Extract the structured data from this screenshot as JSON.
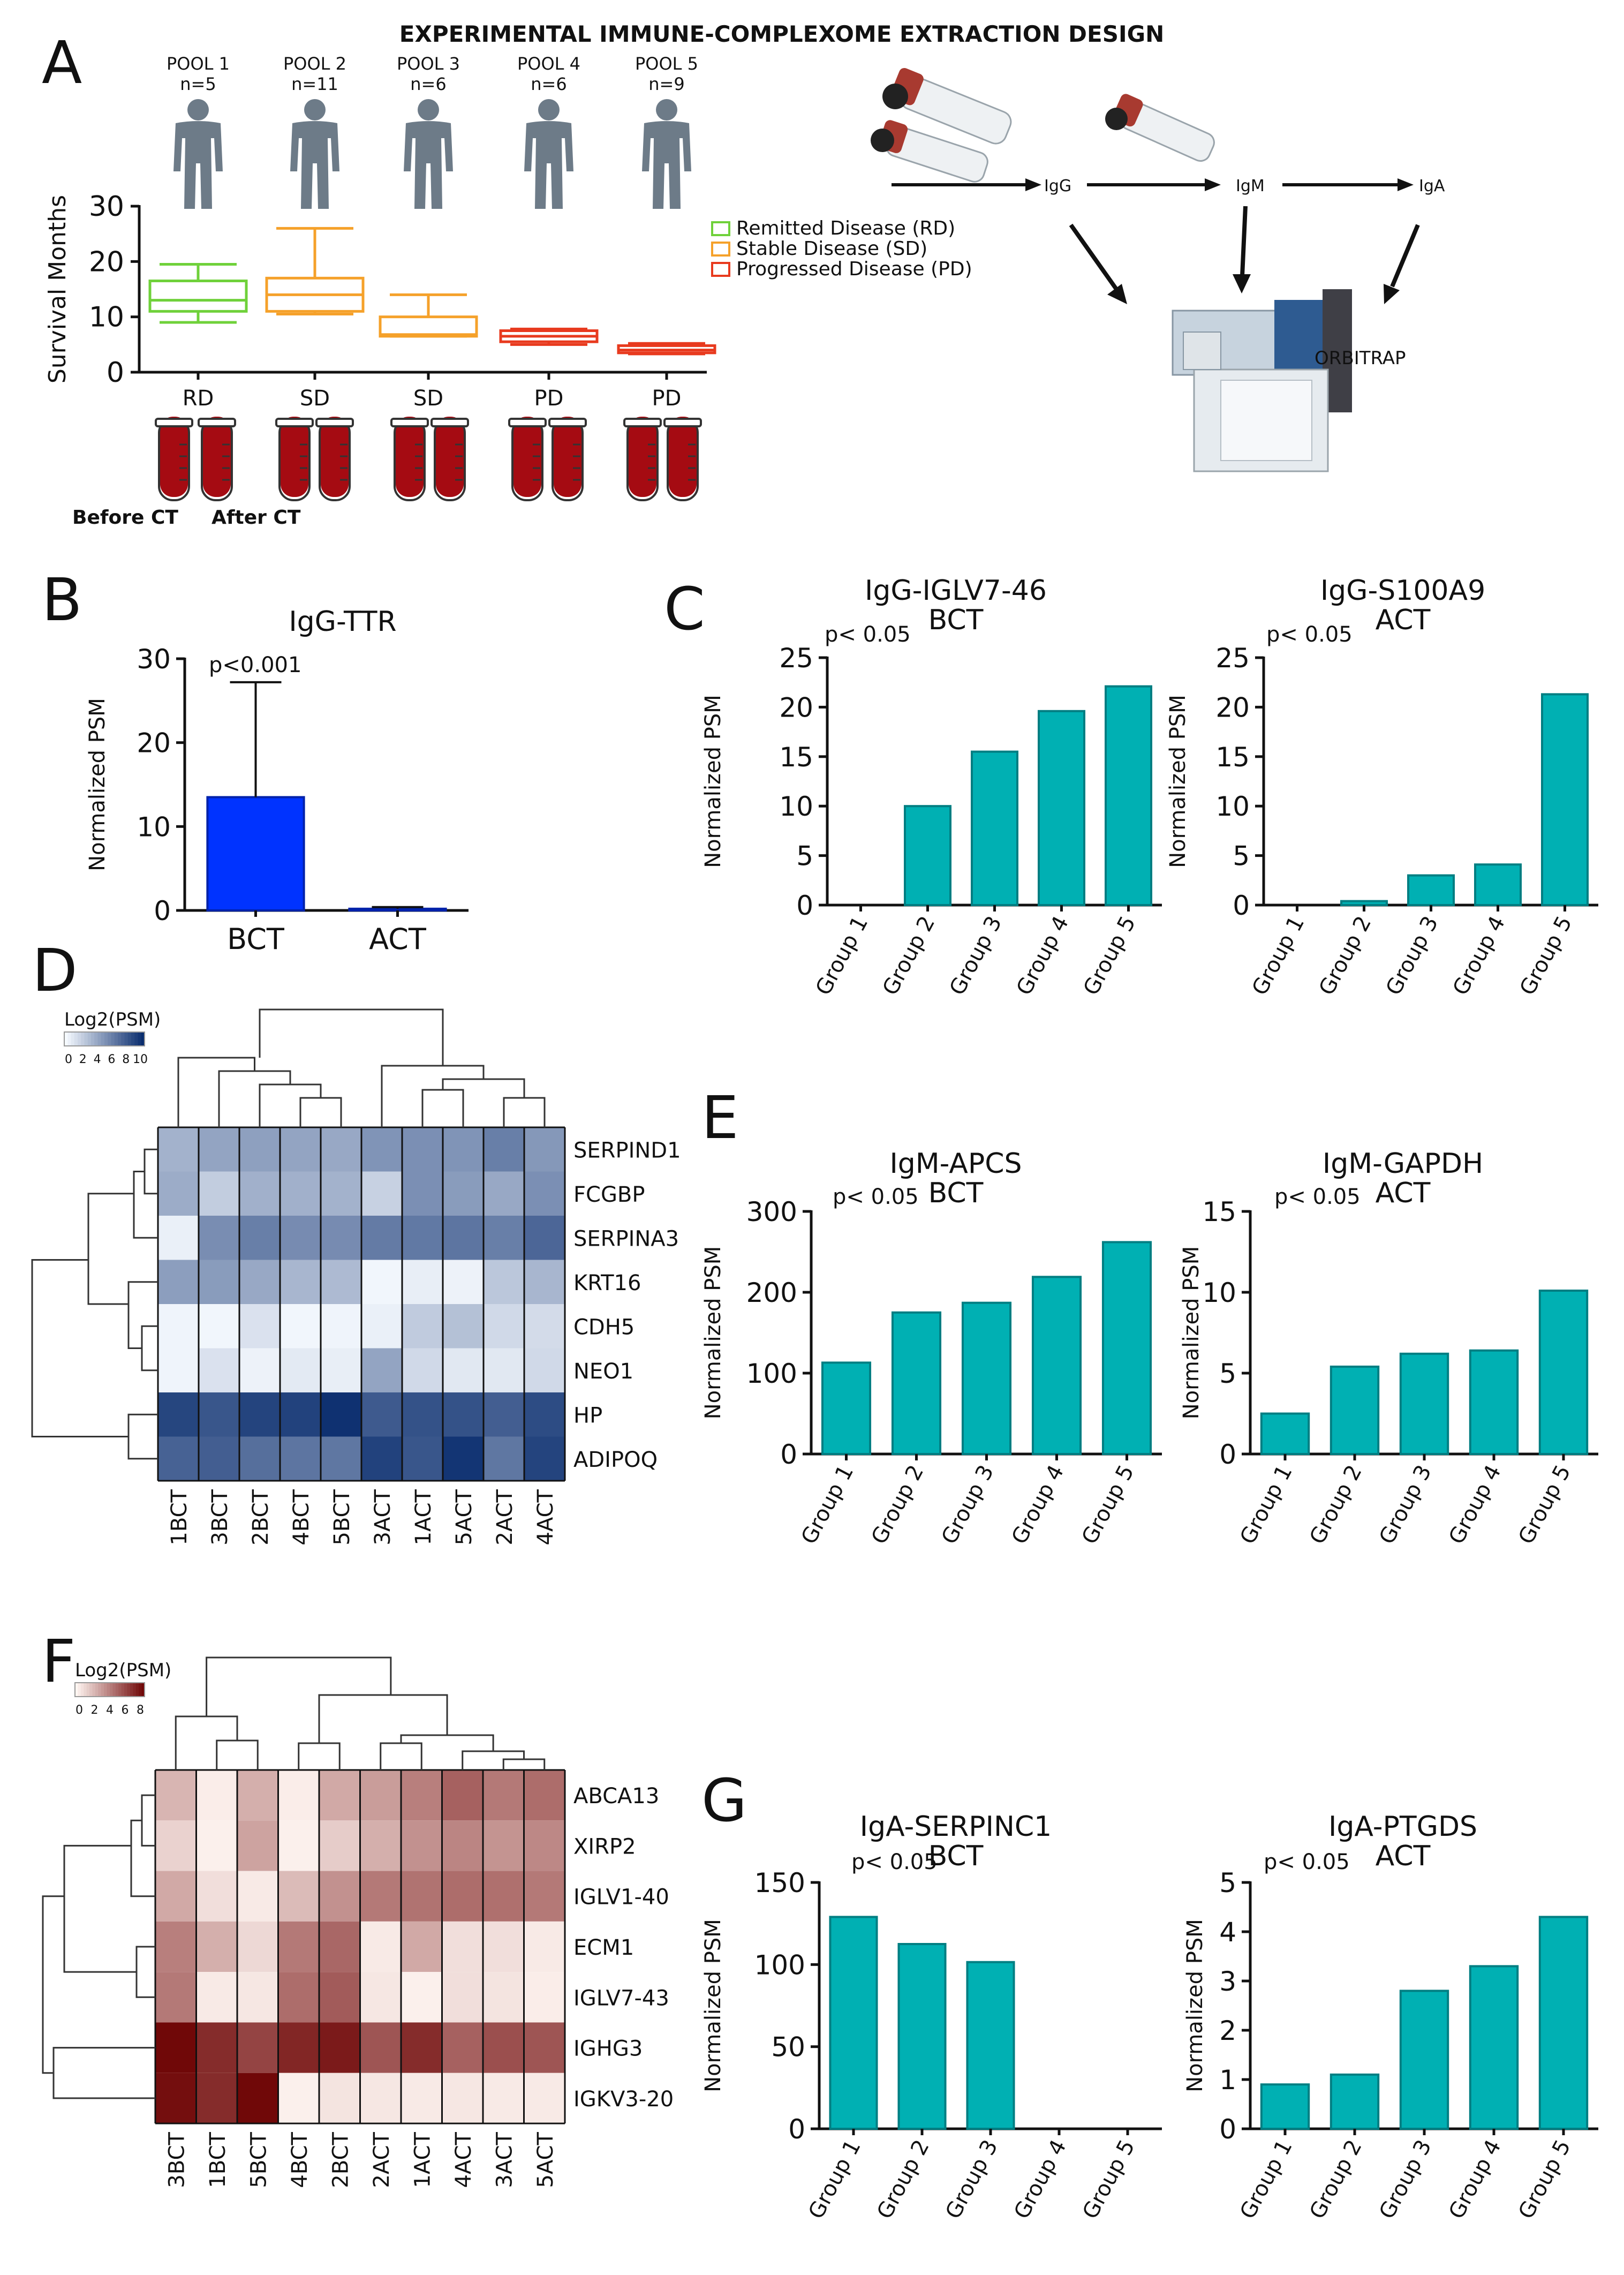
{
  "header": {
    "title": "EXPERIMENTAL IMMUNE-COMPLEXOME EXTRACTION DESIGN"
  },
  "panel_labels": {
    "a": "A",
    "b": "B",
    "c": "C",
    "d": "D",
    "e": "E",
    "f": "F",
    "g": "G"
  },
  "pools": [
    {
      "name": "POOL 1",
      "n": "n=5"
    },
    {
      "name": "POOL 2",
      "n": "n=11"
    },
    {
      "name": "POOL 3",
      "n": "n=6"
    },
    {
      "name": "POOL 4",
      "n": "n=6"
    },
    {
      "name": "POOL 5",
      "n": "n=9"
    }
  ],
  "tubes": {
    "before": "Before CT",
    "after": "After CT"
  },
  "workflow": {
    "igg": "IgG",
    "igm": "IgM",
    "iga": "IgA",
    "instrument": "ORBITRAP"
  },
  "colors": {
    "teal": "#00B0B3",
    "teal_edge": "#007E82",
    "blue": "#0033FF",
    "rd": "#6FD13A",
    "sd": "#F5A12A",
    "pd": "#E83A1E"
  },
  "chart_data": [
    {
      "id": "A",
      "type": "box",
      "title": "",
      "ylabel": "Survival Months",
      "ylim": [
        0,
        30
      ],
      "yticks": [
        0,
        10,
        20,
        30
      ],
      "categories": [
        "RD",
        "SD",
        "SD",
        "PD",
        "PD"
      ],
      "boxes": [
        {
          "group": "RD",
          "min": 9,
          "q1": 11,
          "median": 13,
          "q3": 16.5,
          "max": 19.5,
          "color": "#6FD13A"
        },
        {
          "group": "SD",
          "min": 10.5,
          "q1": 11,
          "median": 14,
          "q3": 17,
          "max": 26,
          "color": "#F5A12A"
        },
        {
          "group": "SD",
          "min": 6.5,
          "q1": 6.5,
          "median": 6.8,
          "q3": 10,
          "max": 14,
          "color": "#F5A12A"
        },
        {
          "group": "PD",
          "min": 5,
          "q1": 5.5,
          "median": 6.5,
          "q3": 7.5,
          "max": 7.8,
          "color": "#E83A1E"
        },
        {
          "group": "PD",
          "min": 3.3,
          "q1": 3.5,
          "median": 4,
          "q3": 4.8,
          "max": 5.2,
          "color": "#E83A1E"
        }
      ],
      "legend": [
        "Remitted Disease (RD)",
        "Stable Disease (SD)",
        "Progressed Disease (PD)"
      ]
    },
    {
      "id": "B",
      "type": "bar",
      "title": "IgG-TTR",
      "ylabel": "Normalized PSM",
      "ylim": [
        0,
        30
      ],
      "yticks": [
        0,
        10,
        20,
        30
      ],
      "categories": [
        "BCT",
        "ACT"
      ],
      "values": [
        13.5,
        0.2
      ],
      "error": [
        27.2,
        0.4
      ],
      "annotation": "p<0.001"
    },
    {
      "id": "C1",
      "type": "bar",
      "title": "IgG-IGLV7-46",
      "subtitle": "BCT",
      "ylabel": "Normalized PSM",
      "annotation": "p< 0.05",
      "ylim": [
        0,
        25
      ],
      "yticks": [
        0,
        5,
        10,
        15,
        20,
        25
      ],
      "categories": [
        "Group 1",
        "Group 2",
        "Group 3",
        "Group 4",
        "Group 5"
      ],
      "values": [
        0,
        10,
        15.5,
        19.6,
        22.1
      ]
    },
    {
      "id": "C2",
      "type": "bar",
      "title": "IgG-S100A9",
      "subtitle": "ACT",
      "ylabel": "Normalized PSM",
      "annotation": "p< 0.05",
      "ylim": [
        0,
        25
      ],
      "yticks": [
        0,
        5,
        10,
        15,
        20,
        25
      ],
      "categories": [
        "Group 1",
        "Group 2",
        "Group 3",
        "Group 4",
        "Group 5"
      ],
      "values": [
        0,
        0.4,
        3,
        4.1,
        21.3
      ]
    },
    {
      "id": "E1",
      "type": "bar",
      "title": "IgM-APCS",
      "subtitle": "BCT",
      "ylabel": "Normalized PSM",
      "annotation": "p< 0.05",
      "ylim": [
        0,
        300
      ],
      "yticks": [
        0,
        100,
        200,
        300
      ],
      "categories": [
        "Group 1",
        "Group 2",
        "Group 3",
        "Group 4",
        "Group 5"
      ],
      "values": [
        113,
        175,
        187,
        219,
        262
      ]
    },
    {
      "id": "E2",
      "type": "bar",
      "title": "IgM-GAPDH",
      "subtitle": "ACT",
      "ylabel": "Normalized PSM",
      "annotation": "p< 0.05",
      "ylim": [
        0,
        15
      ],
      "yticks": [
        0,
        5,
        10,
        15
      ],
      "categories": [
        "Group 1",
        "Group 2",
        "Group 3",
        "Group 4",
        "Group 5"
      ],
      "values": [
        2.5,
        5.4,
        6.2,
        6.4,
        10.1
      ]
    },
    {
      "id": "G1",
      "type": "bar",
      "title": "IgA-SERPINC1",
      "subtitle": "BCT",
      "ylabel": "Normalized PSM",
      "annotation": "p< 0.05",
      "ylim": [
        0,
        150
      ],
      "yticks": [
        0,
        50,
        100,
        150
      ],
      "categories": [
        "Group 1",
        "Group 2",
        "Group 3",
        "Group 4",
        "Group 5"
      ],
      "values": [
        129,
        112.5,
        101.5,
        0,
        0
      ]
    },
    {
      "id": "G2",
      "type": "bar",
      "title": "IgA-PTGDS",
      "subtitle": "ACT",
      "ylabel": "Normalized PSM",
      "annotation": "p< 0.05",
      "ylim": [
        0,
        5
      ],
      "yticks": [
        0,
        1,
        2,
        3,
        4,
        5
      ],
      "categories": [
        "Group 1",
        "Group 2",
        "Group 3",
        "Group 4",
        "Group 5"
      ],
      "values": [
        0.9,
        1.1,
        2.8,
        3.3,
        4.3
      ]
    },
    {
      "id": "D",
      "type": "heatmap",
      "legend_title": "Log2(PSM)",
      "legend_ticks": [
        0,
        2,
        4,
        6,
        8,
        10
      ],
      "color": "blue",
      "vmax": 10,
      "columns": [
        "1BCT",
        "3BCT",
        "2BCT",
        "4BCT",
        "5BCT",
        "3ACT",
        "1ACT",
        "5ACT",
        "2ACT",
        "4ACT"
      ],
      "rows": [
        "SERPIND1",
        "FCGBP",
        "SERPINA3",
        "KRT16",
        "CDH5",
        "NEO1",
        "HP",
        "ADIPOQ"
      ],
      "values": [
        [
          3.5,
          4.2,
          4.4,
          4.2,
          4.0,
          5.0,
          5.2,
          5.0,
          6.0,
          4.8
        ],
        [
          3.8,
          2.2,
          3.6,
          3.6,
          3.5,
          2.0,
          5.2,
          4.6,
          4.0,
          5.2
        ],
        [
          0.5,
          5.3,
          6.0,
          5.4,
          5.4,
          6.2,
          6.3,
          6.5,
          6.0,
          7.2
        ],
        [
          4.5,
          4.6,
          4.0,
          3.3,
          3.1,
          0.2,
          0.6,
          0.4,
          2.5,
          3.3
        ],
        [
          0.3,
          0.2,
          1.2,
          0.2,
          0.3,
          0.5,
          2.3,
          2.8,
          1.6,
          1.5
        ],
        [
          0.3,
          1.2,
          0.4,
          0.8,
          0.6,
          4.2,
          1.6,
          0.9,
          0.9,
          1.6
        ],
        [
          8.8,
          8.0,
          8.9,
          9.0,
          9.8,
          7.8,
          8.2,
          8.2,
          7.6,
          8.5
        ],
        [
          7.4,
          7.6,
          6.8,
          6.5,
          6.4,
          9.0,
          8.0,
          9.6,
          6.4,
          8.9
        ]
      ],
      "row_dendrogram": "yes",
      "col_dendrogram": "yes"
    },
    {
      "id": "F",
      "type": "heatmap",
      "legend_title": "Log2(PSM)",
      "legend_ticks": [
        0,
        2,
        4,
        6,
        8
      ],
      "color": "red",
      "vmax": 8,
      "columns": [
        "3BCT",
        "1BCT",
        "5BCT",
        "4BCT",
        "2BCT",
        "2ACT",
        "1ACT",
        "4ACT",
        "3ACT",
        "5ACT"
      ],
      "rows": [
        "ABCA13",
        "XIRP2",
        "IGLV1-40",
        "ECM1",
        "IGLV7-43",
        "IGHG3",
        "IGKV3-20"
      ],
      "values": [
        [
          2.2,
          0.3,
          2.4,
          0.3,
          2.6,
          3.0,
          4.0,
          5.0,
          4.2,
          4.6
        ],
        [
          1.2,
          0.2,
          2.8,
          0.2,
          1.4,
          2.4,
          3.4,
          3.8,
          3.3,
          3.7
        ],
        [
          2.6,
          0.8,
          0.4,
          2.0,
          3.4,
          4.2,
          4.4,
          4.6,
          4.5,
          4.2
        ],
        [
          4.0,
          2.4,
          1.0,
          4.2,
          4.8,
          0.4,
          2.6,
          0.8,
          0.8,
          0.4
        ],
        [
          4.2,
          0.4,
          0.5,
          4.6,
          5.2,
          0.5,
          0.2,
          0.8,
          0.6,
          0.3
        ],
        [
          8.0,
          6.8,
          6.0,
          7.0,
          7.4,
          5.4,
          6.8,
          5.0,
          5.6,
          5.4
        ],
        [
          7.8,
          6.8,
          8.0,
          0.2,
          0.6,
          0.5,
          0.4,
          0.5,
          0.4,
          0.4
        ]
      ],
      "row_dendrogram": "yes",
      "col_dendrogram": "yes"
    }
  ]
}
